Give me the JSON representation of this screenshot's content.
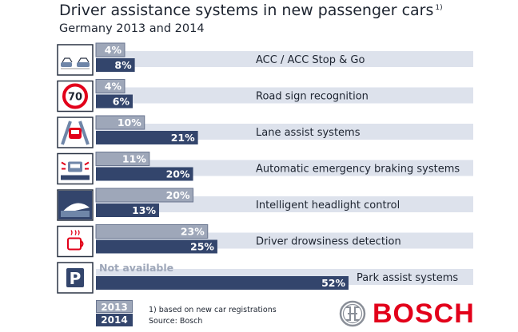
{
  "title": "Driver assistance systems in new passenger cars",
  "title_note": "1)",
  "subtitle": "Germany 2013 and 2014",
  "legend": {
    "y2013": "2013",
    "y2014": "2014"
  },
  "footnote": {
    "line1": "1) based on new car registrations",
    "line2": "Source: Bosch"
  },
  "brand": "BOSCH",
  "colors": {
    "bar2013": "#9ea7b9",
    "bar2014": "#33456c",
    "band": "#dde2ec",
    "brand": "#e2001a"
  },
  "chart_data": {
    "type": "bar",
    "orientation": "horizontal",
    "categories": [
      "ACC / ACC Stop & Go",
      "Road sign recognition",
      "Lane assist systems",
      "Automatic emergency braking systems",
      "Intelligent headlight control",
      "Driver drowsiness detection",
      "Park assist systems"
    ],
    "icons": [
      "acc-car-icon",
      "speed-sign-70-icon",
      "lane-assist-icon",
      "emergency-braking-icon",
      "headlight-icon",
      "coffee-cup-icon",
      "parking-sign-icon"
    ],
    "sign_text": "70",
    "parking_letter": "P",
    "series": [
      {
        "name": "2013",
        "values": [
          4,
          4,
          10,
          11,
          20,
          23,
          null
        ],
        "labels": [
          "4%",
          "4%",
          "10%",
          "11%",
          "20%",
          "23%",
          "Not available"
        ]
      },
      {
        "name": "2014",
        "values": [
          8,
          6,
          21,
          20,
          13,
          25,
          52
        ],
        "labels": [
          "8%",
          "6%",
          "21%",
          "20%",
          "13%",
          "25%",
          "52%"
        ]
      }
    ],
    "xlim": [
      0,
      52
    ]
  }
}
